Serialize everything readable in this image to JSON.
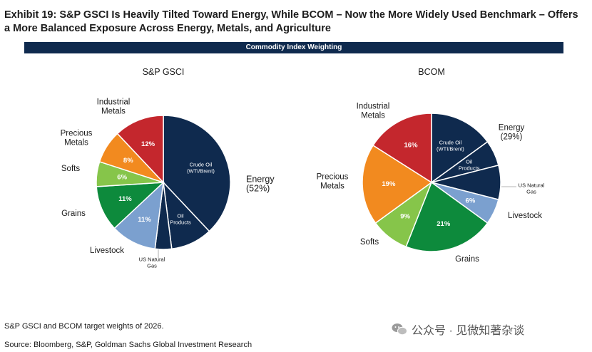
{
  "title": "Exhibit 19: S&P GSCI Is Heavily Tilted Toward Energy, While BCOM – Now the More Widely Used Benchmark – Offers a More Balanced Exposure Across Energy, Metals, and Agriculture",
  "banner": "Commodity Index Weighting",
  "footnote": "S&P GSCI and BCOM target weights of 2026.",
  "source": "Source: Bloomberg, S&P, Goldman Sachs Global Investment Research",
  "watermark": "公众号 · 见微知著杂谈",
  "colors": {
    "energy": "#0f2a4e",
    "livestock": "#7ba0cf",
    "grains": "#0d8a3c",
    "softs": "#86c54a",
    "precious_metals": "#f28a1f",
    "industrial_metals": "#c4272d",
    "banner": "#0f2a4e"
  },
  "chart_data": [
    {
      "type": "pie",
      "title": "S&P GSCI",
      "start": "12 o'clock, clockwise",
      "slices": [
        {
          "name": "Crude Oil (WTI/Brent)",
          "group": "energy",
          "value": 38,
          "label": "Crude Oil\n(WTI/Brent)"
        },
        {
          "name": "Oil Products",
          "group": "energy",
          "value": 10,
          "label": "Oil\nProducts"
        },
        {
          "name": "US Natural Gas",
          "group": "energy",
          "value": 4,
          "label": ""
        },
        {
          "name": "Livestock",
          "group": "livestock",
          "value": 11,
          "label": "11%"
        },
        {
          "name": "Grains",
          "group": "grains",
          "value": 11,
          "label": "11%"
        },
        {
          "name": "Softs",
          "group": "softs",
          "value": 6,
          "label": "6%"
        },
        {
          "name": "Precious Metals",
          "group": "precious_metals",
          "value": 8,
          "label": "8%"
        },
        {
          "name": "Industrial Metals",
          "group": "industrial_metals",
          "value": 12,
          "label": "12%"
        }
      ],
      "annotations": [
        {
          "text": "Industrial\nMetals"
        },
        {
          "text": "Precious\nMetals"
        },
        {
          "text": "Softs"
        },
        {
          "text": "Grains"
        },
        {
          "text": "Livestock"
        },
        {
          "text": "US Natural\nGas"
        },
        {
          "text": "Energy\n(52%)"
        }
      ]
    },
    {
      "type": "pie",
      "title": "BCOM",
      "start": "12 o'clock, clockwise",
      "slices": [
        {
          "name": "Crude Oil (WTI/Brent)",
          "group": "energy",
          "value": 15,
          "label": "Crude Oil\n(WTI/Brent)"
        },
        {
          "name": "Oil Products",
          "group": "energy",
          "value": 6,
          "label": "Oil\nProducts"
        },
        {
          "name": "US Natural Gas",
          "group": "energy",
          "value": 8,
          "label": ""
        },
        {
          "name": "Livestock",
          "group": "livestock",
          "value": 6,
          "label": "6%"
        },
        {
          "name": "Grains",
          "group": "grains",
          "value": 21,
          "label": "21%"
        },
        {
          "name": "Softs",
          "group": "softs",
          "value": 9,
          "label": "9%"
        },
        {
          "name": "Precious Metals",
          "group": "precious_metals",
          "value": 19,
          "label": "19%"
        },
        {
          "name": "Industrial Metals",
          "group": "industrial_metals",
          "value": 16,
          "label": "16%"
        }
      ],
      "annotations": [
        {
          "text": "Industrial\nMetals"
        },
        {
          "text": "Energy\n(29%)"
        },
        {
          "text": "US Natural\nGas"
        },
        {
          "text": "Livestock"
        },
        {
          "text": "Precious\nMetals"
        },
        {
          "text": "Softs"
        },
        {
          "text": "Grains"
        }
      ]
    }
  ]
}
